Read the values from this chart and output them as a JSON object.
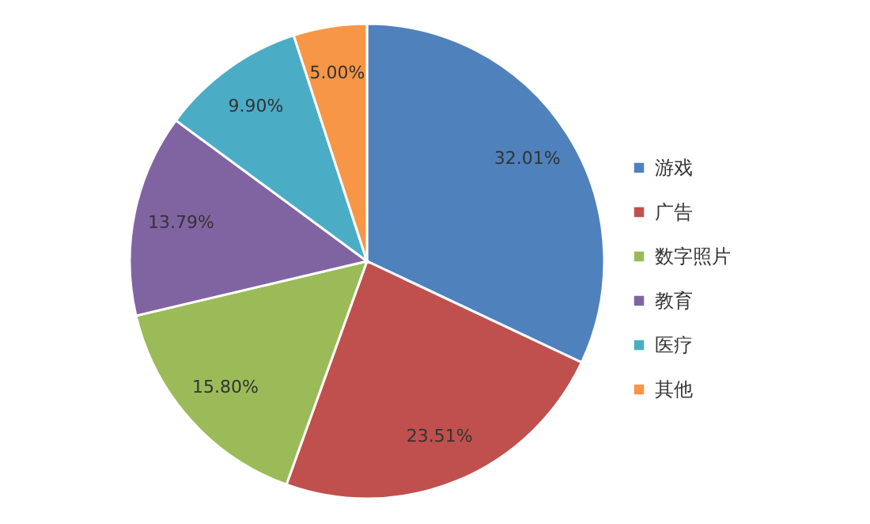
{
  "chart_data": {
    "type": "pie",
    "categories": [
      "游戏",
      "广告",
      "数字照片",
      "教育",
      "医疗",
      "其他"
    ],
    "values": [
      32.01,
      23.51,
      15.8,
      13.79,
      9.9,
      5.0
    ],
    "value_labels": [
      "32.01%",
      "23.51%",
      "15.80%",
      "13.79%",
      "9.90%",
      "5.00%"
    ],
    "colors": [
      "#4f81bd",
      "#c0504d",
      "#9bbb59",
      "#8064a2",
      "#4bacc6",
      "#f79646"
    ],
    "legend": "right"
  }
}
